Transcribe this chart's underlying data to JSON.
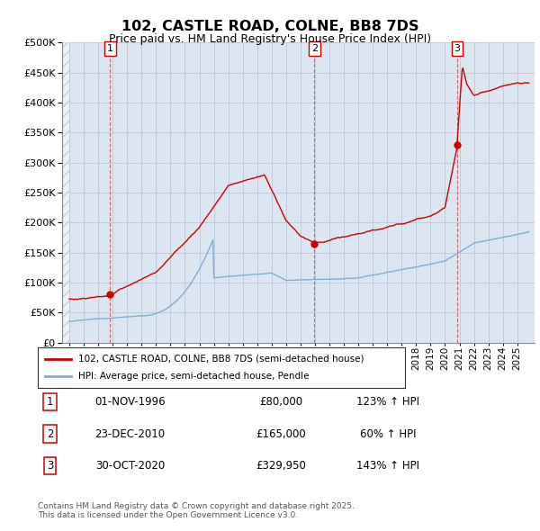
{
  "title": "102, CASTLE ROAD, COLNE, BB8 7DS",
  "subtitle": "Price paid vs. HM Land Registry's House Price Index (HPI)",
  "ylim": [
    0,
    500000
  ],
  "yticks": [
    0,
    50000,
    100000,
    150000,
    200000,
    250000,
    300000,
    350000,
    400000,
    450000,
    500000
  ],
  "red_line_color": "#cc0000",
  "blue_line_color": "#7bafd4",
  "grid_color": "#c0ccdd",
  "bg_color": "#dce6f1",
  "legend_text_red": "102, CASTLE ROAD, COLNE, BB8 7DS (semi-detached house)",
  "legend_text_blue": "HPI: Average price, semi-detached house, Pendle",
  "sale_points": [
    {
      "label": "1",
      "date_x": 1996.83,
      "price": 80000,
      "date_str": "01-NOV-1996",
      "price_str": "£80,000",
      "hpi_str": "123% ↑ HPI"
    },
    {
      "label": "2",
      "date_x": 2010.97,
      "price": 165000,
      "date_str": "23-DEC-2010",
      "price_str": "£165,000",
      "hpi_str": "60% ↑ HPI"
    },
    {
      "label": "3",
      "date_x": 2020.83,
      "price": 329950,
      "date_str": "30-OCT-2020",
      "price_str": "£329,950",
      "hpi_str": "143% ↑ HPI"
    }
  ],
  "footer": "Contains HM Land Registry data © Crown copyright and database right 2025.\nThis data is licensed under the Open Government Licence v3.0.",
  "xmin": 1993.5,
  "xmax": 2026.2
}
